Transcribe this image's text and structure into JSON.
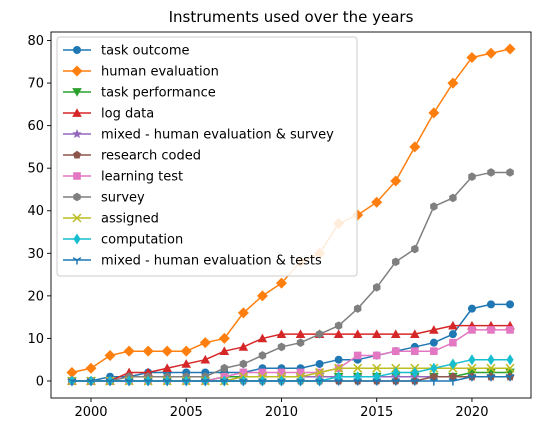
{
  "chart_data": {
    "type": "line",
    "title": "Instruments used over the years",
    "xlabel": "",
    "ylabel": "",
    "xlim": [
      1997.9,
      2023.1
    ],
    "ylim": [
      -4,
      82
    ],
    "x_ticks": [
      2000,
      2005,
      2010,
      2015,
      2020
    ],
    "y_ticks": [
      0,
      10,
      20,
      30,
      40,
      50,
      60,
      70,
      80
    ],
    "grid": false,
    "legend_position": "upper-left",
    "x": [
      1999,
      2000,
      2001,
      2002,
      2003,
      2004,
      2005,
      2006,
      2007,
      2008,
      2009,
      2010,
      2011,
      2012,
      2013,
      2014,
      2015,
      2016,
      2017,
      2018,
      2019,
      2020,
      2021,
      2022
    ],
    "series": [
      {
        "name": "task outcome",
        "color": "#1f77b4",
        "marker": "circle",
        "values": [
          0,
          0,
          1,
          1,
          2,
          2,
          2,
          2,
          2,
          2,
          3,
          3,
          3,
          4,
          5,
          5,
          6,
          7,
          8,
          9,
          11,
          17,
          18,
          18
        ]
      },
      {
        "name": "human evaluation",
        "color": "#ff7f0e",
        "marker": "diamond",
        "values": [
          2,
          3,
          6,
          7,
          7,
          7,
          7,
          9,
          10,
          16,
          20,
          23,
          28,
          30,
          37,
          39,
          42,
          47,
          55,
          63,
          70,
          76,
          77,
          78
        ]
      },
      {
        "name": "task performance",
        "color": "#2ca02c",
        "marker": "triangle-down",
        "values": [
          0,
          0,
          0,
          0,
          0,
          0,
          0,
          0,
          1,
          1,
          1,
          1,
          1,
          1,
          1,
          1,
          1,
          1,
          1,
          1,
          1,
          2,
          2,
          2
        ]
      },
      {
        "name": "log data",
        "color": "#d62728",
        "marker": "triangle-up",
        "values": [
          0,
          0,
          0,
          2,
          2,
          3,
          4,
          5,
          7,
          8,
          10,
          11,
          11,
          11,
          11,
          11,
          11,
          11,
          11,
          12,
          13,
          13,
          13,
          13
        ]
      },
      {
        "name": "mixed - human evaluation & survey",
        "color": "#9467bd",
        "marker": "star",
        "values": [
          0,
          0,
          0,
          0,
          0,
          0,
          0,
          0,
          0,
          1,
          1,
          1,
          1,
          1,
          1,
          1,
          1,
          1,
          1,
          1,
          1,
          1,
          1,
          1
        ]
      },
      {
        "name": "research coded",
        "color": "#8c564b",
        "marker": "pentagon",
        "values": [
          0,
          0,
          0,
          0,
          0,
          0,
          0,
          0,
          0,
          0,
          0,
          0,
          0,
          0,
          0,
          0,
          0,
          0,
          0,
          1,
          1,
          1,
          1,
          1
        ]
      },
      {
        "name": "learning test",
        "color": "#e377c2",
        "marker": "square",
        "values": [
          0,
          0,
          0,
          0,
          0,
          0,
          0,
          0,
          1,
          2,
          2,
          2,
          2,
          2,
          3,
          6,
          6,
          7,
          7,
          7,
          9,
          12,
          12,
          12
        ]
      },
      {
        "name": "survey",
        "color": "#7f7f7f",
        "marker": "hexagon",
        "values": [
          0,
          0,
          0,
          1,
          1,
          1,
          1,
          1,
          3,
          4,
          6,
          8,
          9,
          11,
          13,
          17,
          22,
          28,
          31,
          41,
          43,
          48,
          49,
          49
        ]
      },
      {
        "name": "assigned",
        "color": "#bcbd22",
        "marker": "x",
        "values": [
          0,
          0,
          0,
          0,
          0,
          0,
          0,
          0,
          0,
          1,
          1,
          1,
          1,
          2,
          3,
          3,
          3,
          3,
          3,
          3,
          3,
          3,
          3,
          3
        ]
      },
      {
        "name": "computation",
        "color": "#17becf",
        "marker": "thin-diamond",
        "values": [
          0,
          0,
          0,
          0,
          0,
          0,
          0,
          0,
          0,
          0,
          0,
          0,
          0,
          0,
          1,
          1,
          1,
          2,
          2,
          3,
          4,
          5,
          5,
          5
        ]
      },
      {
        "name": "mixed - human evaluation & tests",
        "color": "#1f77b4",
        "marker": "tri-down",
        "values": [
          0,
          0,
          0,
          0,
          0,
          0,
          0,
          0,
          0,
          0,
          0,
          0,
          0,
          0,
          0,
          0,
          0,
          0,
          0,
          0,
          0,
          1,
          1,
          1
        ]
      }
    ]
  }
}
